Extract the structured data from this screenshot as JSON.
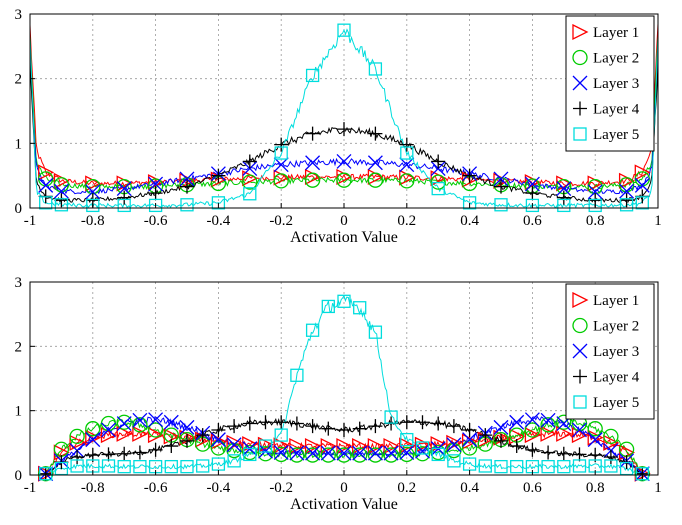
{
  "chart_data": [
    {
      "type": "line",
      "title": "",
      "xlabel": "Activation Value",
      "ylabel": "",
      "xlim": [
        -1,
        1
      ],
      "ylim": [
        0,
        3
      ],
      "xticks": [
        "-1",
        "-0.8",
        "-0.6",
        "-0.4",
        "-0.2",
        "0",
        "0.2",
        "0.4",
        "0.6",
        "0.8",
        "1"
      ],
      "yticks": [
        "0",
        "1",
        "2",
        "3"
      ],
      "grid": true,
      "legend": "top-right",
      "x": [
        -1,
        -0.98,
        -0.95,
        -0.9,
        -0.8,
        -0.7,
        -0.6,
        -0.5,
        -0.4,
        -0.3,
        -0.2,
        -0.1,
        0,
        0.1,
        0.2,
        0.3,
        0.4,
        0.5,
        0.6,
        0.7,
        0.8,
        0.9,
        0.95,
        0.98,
        1
      ],
      "series": [
        {
          "name": "Layer 1",
          "color": "#ff0000",
          "marker": "triangle-right",
          "values": [
            2.8,
            0.9,
            0.55,
            0.42,
            0.38,
            0.38,
            0.4,
            0.42,
            0.44,
            0.46,
            0.47,
            0.48,
            0.48,
            0.48,
            0.47,
            0.46,
            0.44,
            0.42,
            0.4,
            0.38,
            0.38,
            0.42,
            0.55,
            0.9,
            2.8
          ]
        },
        {
          "name": "Layer 2",
          "color": "#00cc00",
          "marker": "circle",
          "values": [
            2.6,
            0.7,
            0.45,
            0.36,
            0.33,
            0.33,
            0.34,
            0.36,
            0.38,
            0.4,
            0.42,
            0.43,
            0.43,
            0.43,
            0.42,
            0.4,
            0.38,
            0.36,
            0.34,
            0.33,
            0.33,
            0.36,
            0.45,
            0.7,
            2.6
          ]
        },
        {
          "name": "Layer 3",
          "color": "#0000ff",
          "marker": "x",
          "values": [
            2.4,
            0.6,
            0.35,
            0.26,
            0.25,
            0.3,
            0.37,
            0.45,
            0.53,
            0.61,
            0.67,
            0.7,
            0.72,
            0.7,
            0.67,
            0.61,
            0.53,
            0.45,
            0.37,
            0.3,
            0.25,
            0.26,
            0.35,
            0.6,
            2.4
          ]
        },
        {
          "name": "Layer 4",
          "color": "#000000",
          "marker": "plus",
          "values": [
            2.2,
            0.4,
            0.18,
            0.12,
            0.12,
            0.16,
            0.23,
            0.33,
            0.5,
            0.72,
            0.98,
            1.15,
            1.22,
            1.15,
            0.98,
            0.72,
            0.5,
            0.33,
            0.23,
            0.16,
            0.12,
            0.12,
            0.18,
            0.4,
            2.2
          ]
        },
        {
          "name": "Layer 5",
          "color": "#00dddd",
          "marker": "square",
          "values": [
            2.6,
            0.25,
            0.08,
            0.05,
            0.04,
            0.04,
            0.04,
            0.05,
            0.08,
            0.22,
            0.85,
            2.05,
            2.75,
            2.15,
            0.85,
            0.3,
            0.08,
            0.05,
            0.04,
            0.04,
            0.04,
            0.05,
            0.08,
            0.25,
            2.6
          ]
        }
      ]
    },
    {
      "type": "line",
      "title": "",
      "xlabel": "Activation Value",
      "ylabel": "",
      "xlim": [
        -1,
        1
      ],
      "ylim": [
        0,
        3
      ],
      "xticks": [
        "-1",
        "-0.8",
        "-0.6",
        "-0.4",
        "-0.2",
        "0",
        "0.2",
        "0.4",
        "0.6",
        "0.8",
        "1"
      ],
      "yticks": [
        "0",
        "1",
        "2",
        "3"
      ],
      "grid": true,
      "legend": "top-right",
      "x": [
        -0.95,
        -0.9,
        -0.85,
        -0.8,
        -0.75,
        -0.7,
        -0.65,
        -0.6,
        -0.55,
        -0.5,
        -0.45,
        -0.4,
        -0.35,
        -0.3,
        -0.25,
        -0.2,
        -0.15,
        -0.1,
        -0.05,
        0,
        0.05,
        0.1,
        0.15,
        0.2,
        0.25,
        0.3,
        0.35,
        0.4,
        0.45,
        0.5,
        0.55,
        0.6,
        0.65,
        0.7,
        0.75,
        0.8,
        0.85,
        0.9,
        0.95
      ],
      "series": [
        {
          "name": "Layer 1",
          "color": "#ff0000",
          "marker": "triangle-right",
          "values": [
            0.02,
            0.35,
            0.5,
            0.58,
            0.62,
            0.64,
            0.64,
            0.62,
            0.6,
            0.58,
            0.55,
            0.52,
            0.5,
            0.48,
            0.47,
            0.46,
            0.45,
            0.45,
            0.45,
            0.45,
            0.45,
            0.45,
            0.45,
            0.46,
            0.47,
            0.48,
            0.5,
            0.52,
            0.55,
            0.58,
            0.6,
            0.62,
            0.64,
            0.64,
            0.62,
            0.58,
            0.5,
            0.35,
            0.02
          ]
        },
        {
          "name": "Layer 2",
          "color": "#00cc00",
          "marker": "circle",
          "values": [
            0.02,
            0.4,
            0.6,
            0.72,
            0.8,
            0.82,
            0.78,
            0.7,
            0.62,
            0.55,
            0.48,
            0.42,
            0.38,
            0.35,
            0.33,
            0.32,
            0.31,
            0.31,
            0.31,
            0.31,
            0.31,
            0.31,
            0.31,
            0.32,
            0.33,
            0.35,
            0.38,
            0.42,
            0.48,
            0.55,
            0.62,
            0.7,
            0.78,
            0.82,
            0.8,
            0.72,
            0.6,
            0.4,
            0.02
          ]
        },
        {
          "name": "Layer 3",
          "color": "#0000ff",
          "marker": "x",
          "values": [
            0.02,
            0.22,
            0.38,
            0.55,
            0.7,
            0.8,
            0.85,
            0.86,
            0.82,
            0.74,
            0.65,
            0.55,
            0.47,
            0.41,
            0.37,
            0.35,
            0.34,
            0.34,
            0.34,
            0.34,
            0.34,
            0.34,
            0.34,
            0.35,
            0.37,
            0.41,
            0.47,
            0.55,
            0.65,
            0.74,
            0.82,
            0.86,
            0.85,
            0.8,
            0.7,
            0.55,
            0.38,
            0.22,
            0.02
          ]
        },
        {
          "name": "Layer 4",
          "color": "#000000",
          "marker": "plus",
          "values": [
            0.02,
            0.2,
            0.28,
            0.31,
            0.32,
            0.33,
            0.35,
            0.39,
            0.45,
            0.53,
            0.62,
            0.7,
            0.76,
            0.8,
            0.82,
            0.82,
            0.8,
            0.76,
            0.72,
            0.7,
            0.72,
            0.76,
            0.8,
            0.82,
            0.82,
            0.8,
            0.76,
            0.7,
            0.62,
            0.53,
            0.45,
            0.39,
            0.35,
            0.33,
            0.32,
            0.31,
            0.28,
            0.2,
            0.02
          ]
        },
        {
          "name": "Layer 5",
          "color": "#00dddd",
          "marker": "square",
          "values": [
            0.02,
            0.1,
            0.14,
            0.14,
            0.14,
            0.13,
            0.13,
            0.13,
            0.13,
            0.13,
            0.14,
            0.17,
            0.22,
            0.32,
            0.45,
            0.62,
            1.55,
            2.25,
            2.62,
            2.7,
            2.6,
            2.22,
            0.9,
            0.55,
            0.42,
            0.32,
            0.22,
            0.17,
            0.14,
            0.13,
            0.13,
            0.13,
            0.13,
            0.13,
            0.14,
            0.14,
            0.14,
            0.1,
            0.02
          ]
        }
      ]
    }
  ]
}
